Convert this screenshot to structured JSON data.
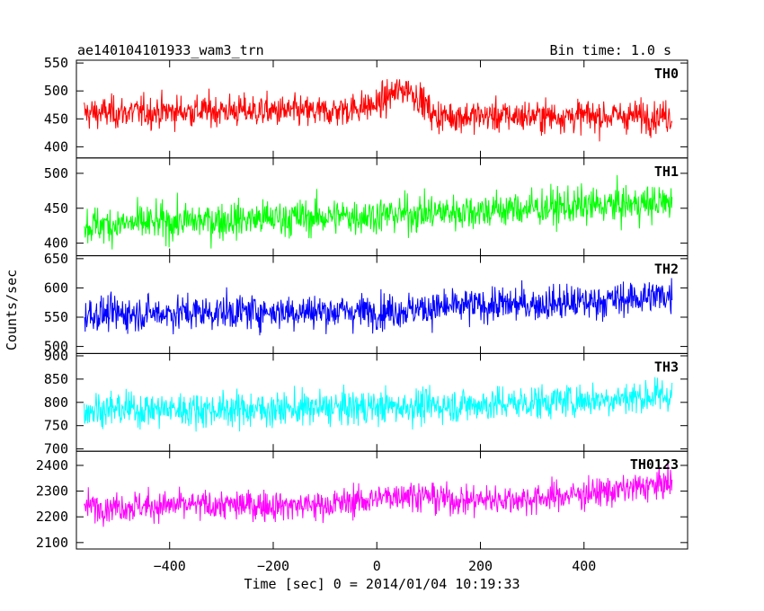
{
  "header": {
    "left_title": "ae140104101933_wam3_trn",
    "right_title": "Bin time: 1.0 s"
  },
  "chart_data": {
    "type": "line",
    "title": "ae140104101933_wam3_trn",
    "subtitle": "Bin time: 1.0 s",
    "xlabel": "Time [sec] 0 = 2014/01/04 10:19:33",
    "ylabel": "Counts/sec",
    "xlim": [
      -580,
      600
    ],
    "x_ticks": [
      -400,
      -200,
      0,
      200,
      400
    ],
    "x_tick_labels": [
      "−400",
      "−200",
      "0",
      "200",
      "400"
    ],
    "x_sample_range": [
      -565,
      570
    ],
    "grid": false,
    "panels": [
      {
        "name": "TH0",
        "color": "#ff0000",
        "ylim": [
          380,
          555
        ],
        "y_ticks": [
          400,
          450,
          500,
          550
        ],
        "profile_x": [
          -565,
          -300,
          -100,
          0,
          30,
          60,
          90,
          110,
          300,
          570
        ],
        "profile_y": [
          460,
          465,
          462,
          475,
          495,
          505,
          480,
          455,
          455,
          455
        ],
        "noise": 27
      },
      {
        "name": "TH1",
        "color": "#00ff00",
        "ylim": [
          382,
          522
        ],
        "y_ticks": [
          400,
          450,
          500
        ],
        "profile_x": [
          -565,
          -300,
          0,
          300,
          570
        ],
        "profile_y": [
          425,
          433,
          440,
          450,
          458
        ],
        "noise": 25
      },
      {
        "name": "TH2",
        "color": "#0000ff",
        "ylim": [
          488,
          655
        ],
        "y_ticks": [
          500,
          550,
          600,
          650
        ],
        "profile_x": [
          -565,
          -200,
          0,
          200,
          400,
          570
        ],
        "profile_y": [
          555,
          560,
          560,
          570,
          575,
          588
        ],
        "noise": 28
      },
      {
        "name": "TH3",
        "color": "#00ffff",
        "ylim": [
          695,
          905
        ],
        "y_ticks": [
          700,
          750,
          800,
          850,
          900
        ],
        "profile_x": [
          -565,
          -200,
          0,
          200,
          400,
          570
        ],
        "profile_y": [
          785,
          785,
          790,
          795,
          805,
          815
        ],
        "noise": 35
      },
      {
        "name": "TH0123",
        "color": "#ff00ff",
        "ylim": [
          2075,
          2455
        ],
        "y_ticks": [
          2100,
          2200,
          2300,
          2400
        ],
        "profile_x": [
          -565,
          -300,
          -100,
          0,
          50,
          150,
          300,
          450,
          570
        ],
        "profile_y": [
          2240,
          2245,
          2245,
          2270,
          2290,
          2265,
          2270,
          2300,
          2330
        ],
        "noise": 55
      }
    ]
  }
}
